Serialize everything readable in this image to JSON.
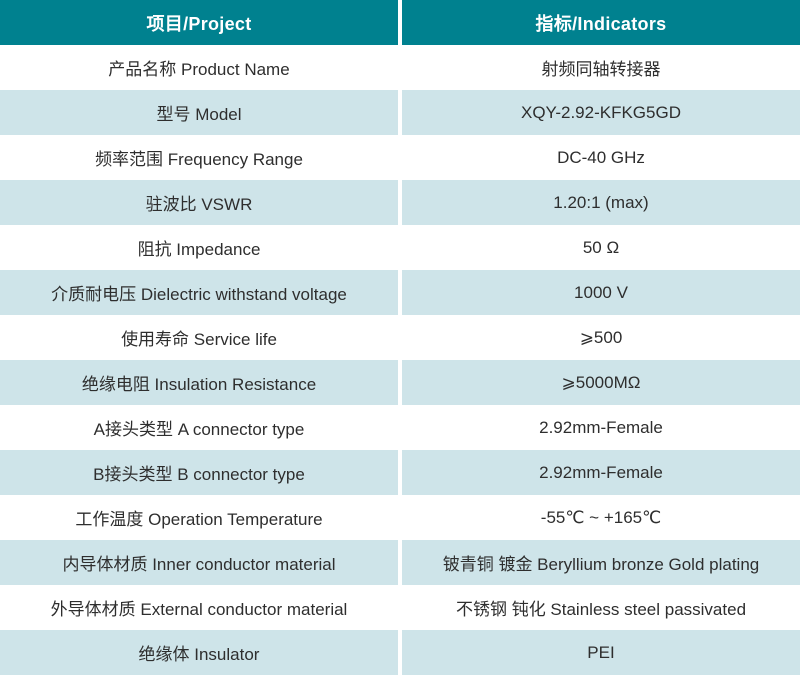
{
  "table": {
    "header": {
      "project": "项目/Project",
      "indicators": "指标/Indicators"
    },
    "rows": [
      {
        "project": "产品名称 Product Name",
        "indicator": "射频同轴转接器"
      },
      {
        "project": "型号 Model",
        "indicator": "XQY-2.92-KFKG5GD"
      },
      {
        "project": "频率范围 Frequency Range",
        "indicator": "DC-40 GHz"
      },
      {
        "project": "驻波比 VSWR",
        "indicator": "1.20:1 (max)"
      },
      {
        "project": "阻抗 Impedance",
        "indicator": "50 Ω"
      },
      {
        "project": "介质耐电压 Dielectric withstand voltage",
        "indicator": "1000 V"
      },
      {
        "project": "使用寿命 Service life",
        "indicator": "⩾500"
      },
      {
        "project": "绝缘电阻 Insulation Resistance",
        "indicator": "⩾5000MΩ"
      },
      {
        "project": "A接头类型 A connector type",
        "indicator": "2.92mm-Female"
      },
      {
        "project": "B接头类型 B connector type",
        "indicator": "2.92mm-Female"
      },
      {
        "project": "工作温度 Operation Temperature",
        "indicator": "-55℃ ~ +165℃"
      },
      {
        "project": "内导体材质 Inner conductor material",
        "indicator": "铍青铜 镀金 Beryllium bronze Gold plating"
      },
      {
        "project": "外导体材质 External conductor material",
        "indicator": "不锈钢 钝化 Stainless steel passivated"
      },
      {
        "project": "绝缘体 Insulator",
        "indicator": "PEI"
      }
    ],
    "colors": {
      "header_bg": "#00818F",
      "header_text": "#FFFFFF",
      "alt_row_bg": "#CEE4E9",
      "body_text": "#2E2E2E",
      "divider": "#FFFFFF"
    }
  }
}
